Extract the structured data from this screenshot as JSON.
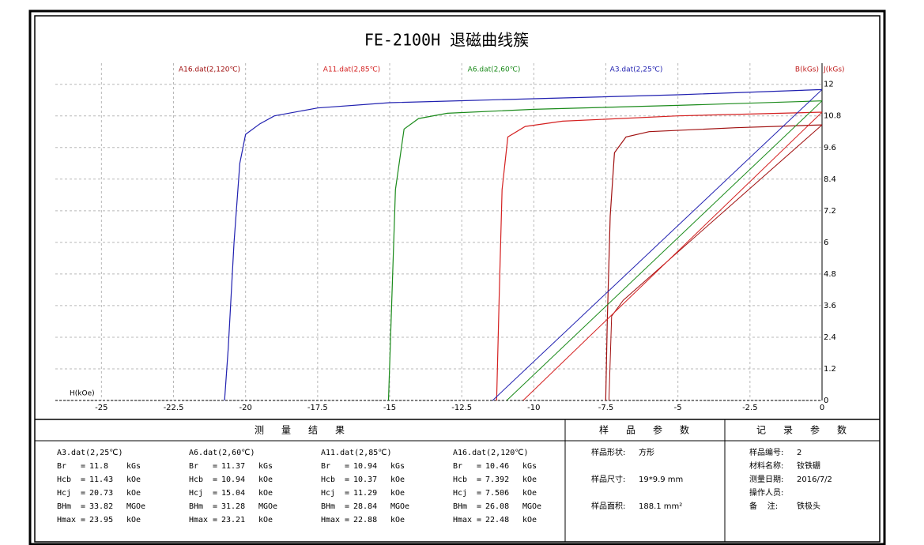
{
  "chart_data": {
    "type": "line",
    "title": "FE-2100H 退磁曲线簇",
    "x_label": "H(kOe)",
    "y_label": "B(kGs)",
    "y2_label": "J(kGs)",
    "xlim": [
      -26.6,
      0
    ],
    "ylim": [
      0,
      12.8
    ],
    "xticks": [
      -25,
      -22.5,
      -20,
      -17.5,
      -15,
      -12.5,
      -10,
      -7.5,
      -5,
      -2.5,
      0
    ],
    "yticks": [
      0,
      1.2,
      2.4,
      3.6,
      4.8,
      6,
      7.2,
      8.4,
      9.6,
      10.8,
      12
    ],
    "grid": true,
    "series": [
      {
        "name": "A16.dat(2,120℃)",
        "color": "#a01010",
        "x": [
          0,
          -3,
          -6,
          -6.8,
          -7.2,
          -7.35,
          -7.45,
          -7.506
        ],
        "values": [
          10.46,
          10.35,
          10.2,
          10,
          9.4,
          7,
          3,
          0
        ],
        "b_x": [
          0,
          -6.9,
          -7.3,
          -7.392
        ],
        "b_values": [
          10.46,
          3.8,
          3.2,
          0
        ]
      },
      {
        "name": "A11.dat(2,85℃)",
        "color": "#d42020",
        "x": [
          0,
          -5,
          -9,
          -10.3,
          -10.9,
          -11.1,
          -11.2,
          -11.29
        ],
        "values": [
          10.94,
          10.8,
          10.6,
          10.4,
          10,
          8,
          4,
          0
        ],
        "b_x": [
          0,
          -10.37
        ],
        "b_values": [
          10.94,
          0
        ]
      },
      {
        "name": "A6.dat(2,60℃)",
        "color": "#1a8a1a",
        "x": [
          0,
          -5,
          -10,
          -13,
          -14,
          -14.5,
          -14.8,
          -14.95,
          -15.04
        ],
        "values": [
          11.37,
          11.2,
          11.05,
          10.9,
          10.7,
          10.3,
          8,
          3,
          0
        ],
        "b_x": [
          0,
          -10.94
        ],
        "b_values": [
          11.37,
          0
        ]
      },
      {
        "name": "A3.dat(2,25℃)",
        "color": "#2020b0",
        "x": [
          0,
          -5,
          -10,
          -15,
          -17.5,
          -19,
          -19.5,
          -20,
          -20.2,
          -20.4,
          -20.6,
          -20.73
        ],
        "values": [
          11.8,
          11.6,
          11.45,
          11.3,
          11.1,
          10.8,
          10.5,
          10.1,
          9,
          6,
          2,
          0
        ],
        "b_x": [
          0,
          -11.43
        ],
        "b_values": [
          11.8,
          0
        ]
      }
    ]
  },
  "results": {
    "title": "测量结果",
    "equals": "=",
    "samples": [
      {
        "name": "A3.dat(2,25℃)",
        "params": [
          {
            "label": "Br",
            "value": 11.8,
            "unit": "kGs"
          },
          {
            "label": "Hcb",
            "value": 11.43,
            "unit": "kOe"
          },
          {
            "label": "Hcj",
            "value": 20.73,
            "unit": "kOe"
          },
          {
            "label": "BHm",
            "value": 33.82,
            "unit": "MGOe"
          },
          {
            "label": "Hmax",
            "value": 23.95,
            "unit": "kOe"
          }
        ]
      },
      {
        "name": "A6.dat(2,60℃)",
        "params": [
          {
            "label": "Br",
            "value": 11.37,
            "unit": "kGs"
          },
          {
            "label": "Hcb",
            "value": 10.94,
            "unit": "kOe"
          },
          {
            "label": "Hcj",
            "value": 15.04,
            "unit": "kOe"
          },
          {
            "label": "BHm",
            "value": 31.28,
            "unit": "MGOe"
          },
          {
            "label": "Hmax",
            "value": 23.21,
            "unit": "kOe"
          }
        ]
      },
      {
        "name": "A11.dat(2,85℃)",
        "params": [
          {
            "label": "Br",
            "value": 10.94,
            "unit": "kGs"
          },
          {
            "label": "Hcb",
            "value": 10.37,
            "unit": "kOe"
          },
          {
            "label": "Hcj",
            "value": 11.29,
            "unit": "kOe"
          },
          {
            "label": "BHm",
            "value": 28.84,
            "unit": "MGOe"
          },
          {
            "label": "Hmax",
            "value": 22.88,
            "unit": "kOe"
          }
        ]
      },
      {
        "name": "A16.dat(2,120℃)",
        "params": [
          {
            "label": "Br",
            "value": 10.46,
            "unit": "kGs"
          },
          {
            "label": "Hcb",
            "value": 7.392,
            "unit": "kOe"
          },
          {
            "label": "Hcj",
            "value": 7.506,
            "unit": "kOe"
          },
          {
            "label": "BHm",
            "value": 26.08,
            "unit": "MGOe"
          },
          {
            "label": "Hmax",
            "value": 22.48,
            "unit": "kOe"
          }
        ]
      }
    ]
  },
  "sample_params": {
    "title": "样品参数",
    "rows": [
      {
        "label": "样品形状:",
        "value": "方形"
      },
      {
        "label": "样品尺寸:",
        "value": "19*9.9 mm"
      },
      {
        "label": "样品面积:",
        "value": "188.1 mm²"
      }
    ]
  },
  "record_params": {
    "title": "记录参数",
    "rows": [
      {
        "label": "样品编号:",
        "value": "2"
      },
      {
        "label": "材料名称:",
        "value": "钕铁硼"
      },
      {
        "label": "测量日期:",
        "value": "2016/7/2"
      },
      {
        "label": "操作人员:"
      },
      {
        "label": "备    注:",
        "value": "铁极头"
      }
    ]
  }
}
